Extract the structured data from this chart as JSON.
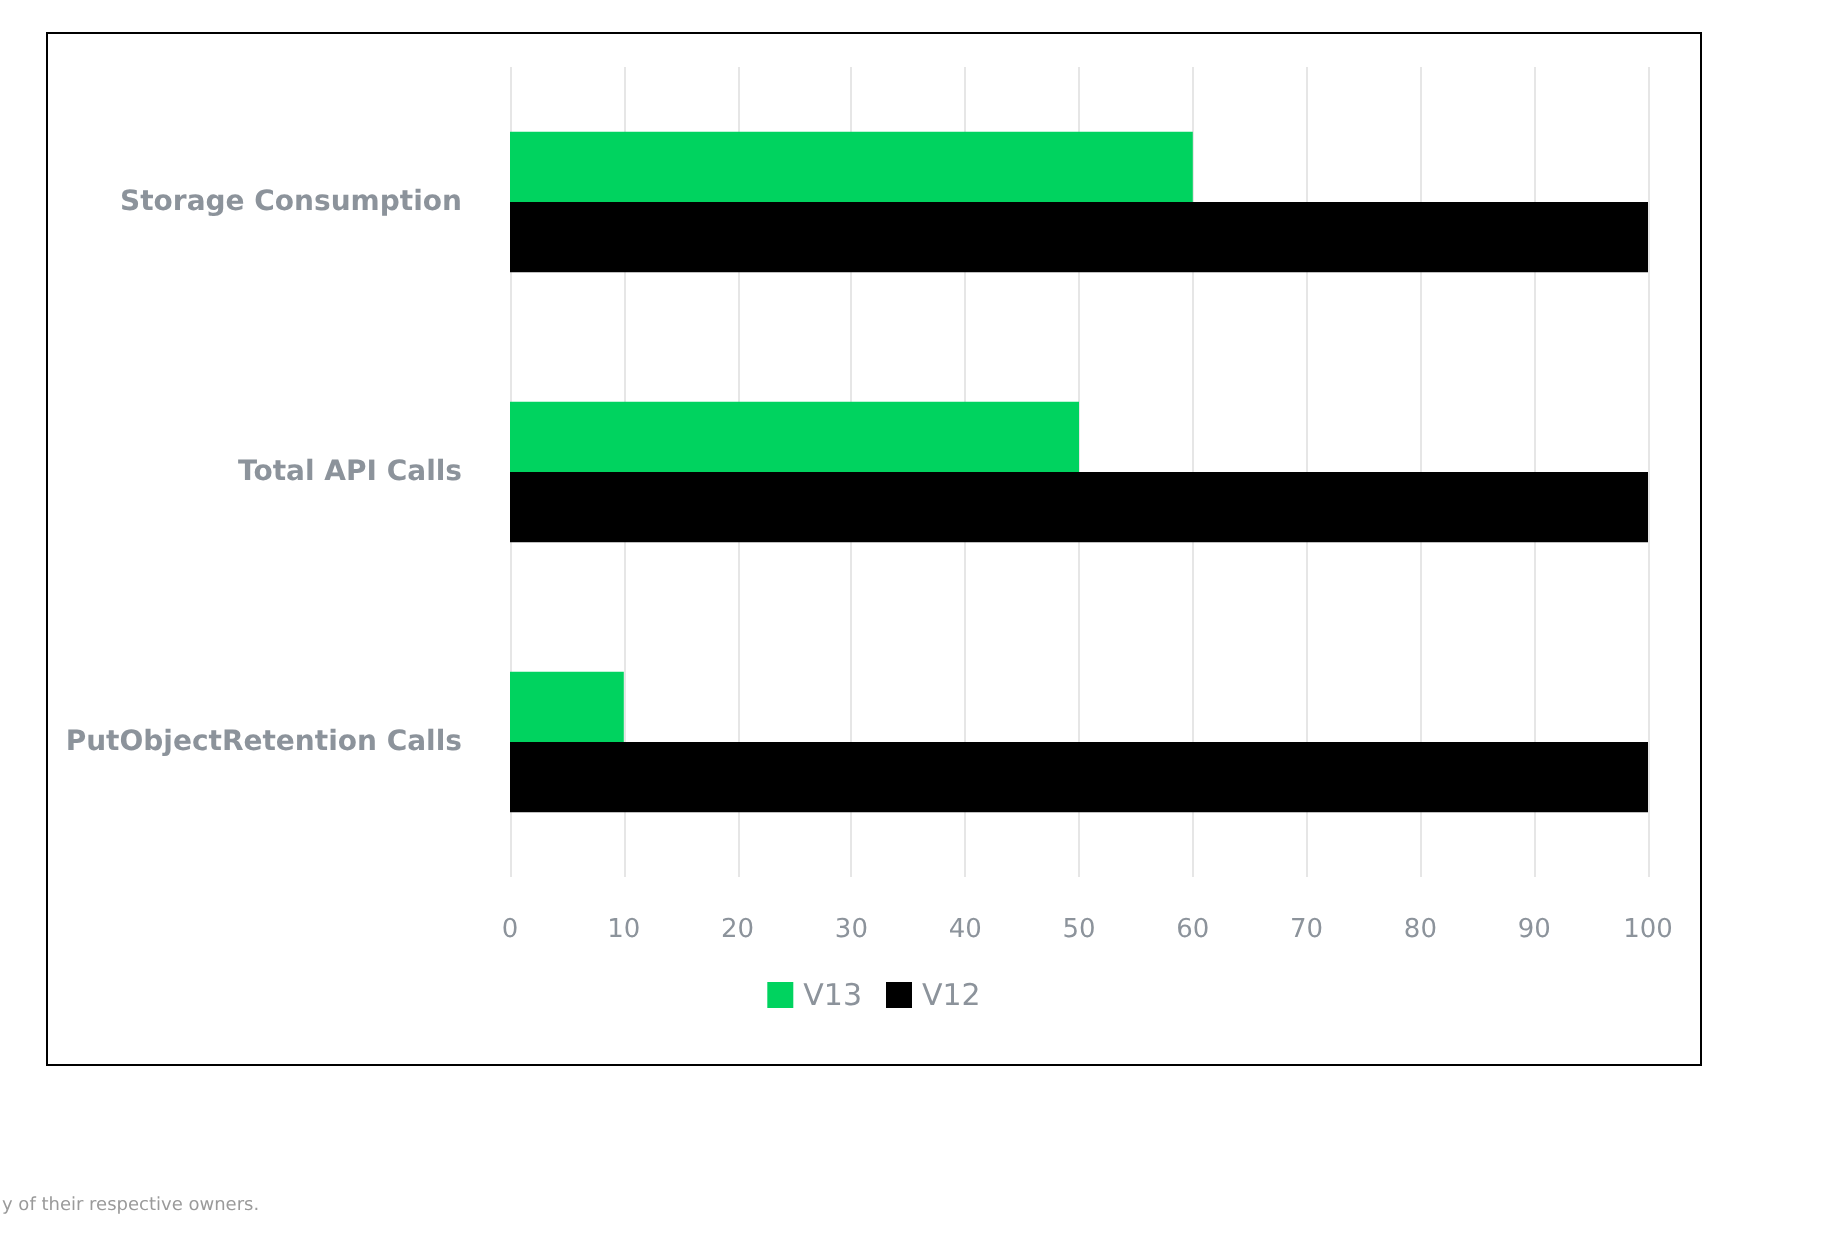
{
  "chart_data": {
    "type": "bar",
    "orientation": "horizontal",
    "categories": [
      "Storage Consumption",
      "Total API Calls",
      "PutObjectRetention Calls"
    ],
    "series": [
      {
        "name": "V13",
        "color": "#00d35f",
        "values": [
          60,
          50,
          10
        ]
      },
      {
        "name": "V12",
        "color": "#000000",
        "values": [
          100,
          100,
          100
        ]
      }
    ],
    "xlim": [
      0,
      100
    ],
    "xticks": [
      0,
      10,
      20,
      30,
      40,
      50,
      60,
      70,
      80,
      90,
      100
    ],
    "grid": "x",
    "legend": "bottom",
    "annotations": [
      "y of their respective owners."
    ]
  }
}
